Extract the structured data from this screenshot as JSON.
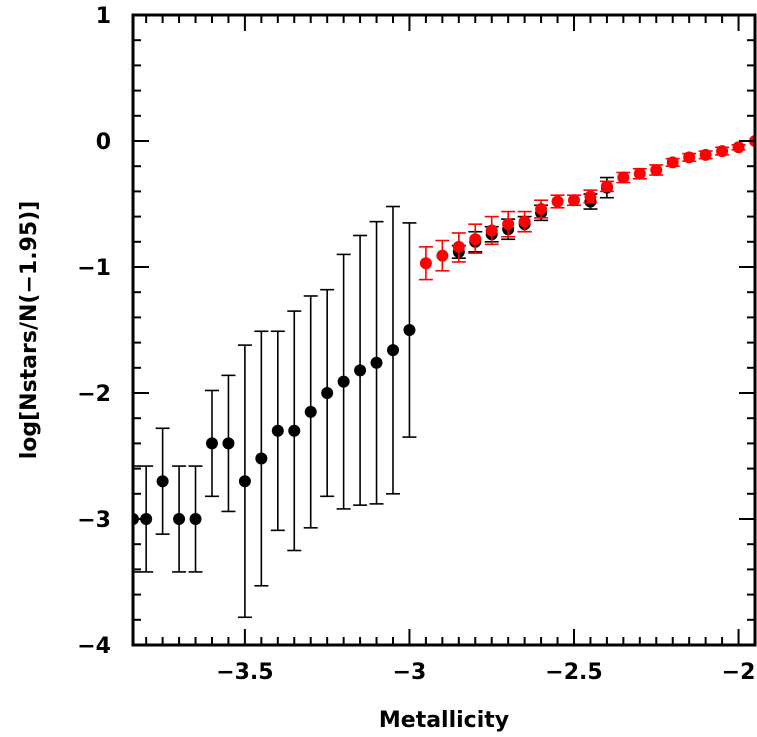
{
  "chart_data": {
    "type": "scatter",
    "title": "",
    "xlabel": "Metallicity",
    "ylabel": "log[Nstars/N(−1.95)]",
    "xlim": [
      -3.84,
      -1.95
    ],
    "ylim": [
      -4,
      1
    ],
    "grid": false,
    "x_ticks": [
      {
        "value": -3.5,
        "label": "−3.5"
      },
      {
        "value": -3,
        "label": "−3"
      },
      {
        "value": -2.5,
        "label": "−2.5"
      },
      {
        "value": -2,
        "label": "−2"
      }
    ],
    "y_ticks": [
      {
        "value": 1,
        "label": "1"
      },
      {
        "value": 0,
        "label": "0"
      },
      {
        "value": -1,
        "label": "−1"
      },
      {
        "value": -2,
        "label": "−2"
      },
      {
        "value": -3,
        "label": "−3"
      },
      {
        "value": -4,
        "label": "−4"
      }
    ],
    "series": [
      {
        "color": "#000000",
        "points": [
          {
            "x": -3.84,
            "y": -3.0,
            "lo": -3.42,
            "hi": -2.58
          },
          {
            "x": -3.8,
            "y": -3.0,
            "lo": -3.42,
            "hi": -2.58
          },
          {
            "x": -3.75,
            "y": -2.7,
            "lo": -3.12,
            "hi": -2.28
          },
          {
            "x": -3.7,
            "y": -3.0,
            "lo": -3.42,
            "hi": -2.58
          },
          {
            "x": -3.65,
            "y": -3.0,
            "lo": -3.42,
            "hi": -2.58
          },
          {
            "x": -3.6,
            "y": -2.4,
            "lo": -2.82,
            "hi": -1.98
          },
          {
            "x": -3.55,
            "y": -2.4,
            "lo": -2.94,
            "hi": -1.86
          },
          {
            "x": -3.5,
            "y": -2.7,
            "lo": -3.78,
            "hi": -1.62
          },
          {
            "x": -3.45,
            "y": -2.52,
            "lo": -3.53,
            "hi": -1.51
          },
          {
            "x": -3.4,
            "y": -2.3,
            "lo": -3.09,
            "hi": -1.51
          },
          {
            "x": -3.35,
            "y": -2.3,
            "lo": -3.25,
            "hi": -1.35
          },
          {
            "x": -3.3,
            "y": -2.15,
            "lo": -3.07,
            "hi": -1.23
          },
          {
            "x": -3.25,
            "y": -2.0,
            "lo": -2.82,
            "hi": -1.18
          },
          {
            "x": -3.2,
            "y": -1.91,
            "lo": -2.92,
            "hi": -0.9
          },
          {
            "x": -3.15,
            "y": -1.82,
            "lo": -2.89,
            "hi": -0.75
          },
          {
            "x": -3.1,
            "y": -1.76,
            "lo": -2.88,
            "hi": -0.64
          },
          {
            "x": -3.05,
            "y": -1.66,
            "lo": -2.8,
            "hi": -0.52
          },
          {
            "x": -3.0,
            "y": -1.5,
            "lo": -2.35,
            "hi": -0.65
          },
          {
            "x": -2.85,
            "y": -0.88,
            "lo": -0.93,
            "hi": -0.83
          },
          {
            "x": -2.8,
            "y": -0.8,
            "lo": -0.88,
            "hi": -0.72
          },
          {
            "x": -2.75,
            "y": -0.74,
            "lo": -0.8,
            "hi": -0.68
          },
          {
            "x": -2.7,
            "y": -0.7,
            "lo": -0.78,
            "hi": -0.62
          },
          {
            "x": -2.65,
            "y": -0.66,
            "lo": -0.72,
            "hi": -0.6
          },
          {
            "x": -2.6,
            "y": -0.57,
            "lo": -0.63,
            "hi": -0.51
          },
          {
            "x": -2.45,
            "y": -0.48,
            "lo": -0.54,
            "hi": -0.42
          },
          {
            "x": -2.4,
            "y": -0.37,
            "lo": -0.45,
            "hi": -0.29
          }
        ]
      },
      {
        "color": "#ff0000",
        "points": [
          {
            "x": -2.95,
            "y": -0.97,
            "lo": -1.1,
            "hi": -0.84
          },
          {
            "x": -2.9,
            "y": -0.91,
            "lo": -1.03,
            "hi": -0.79
          },
          {
            "x": -2.85,
            "y": -0.84,
            "lo": -0.96,
            "hi": -0.73
          },
          {
            "x": -2.8,
            "y": -0.78,
            "lo": -0.89,
            "hi": -0.66
          },
          {
            "x": -2.75,
            "y": -0.71,
            "lo": -0.82,
            "hi": -0.6
          },
          {
            "x": -2.7,
            "y": -0.66,
            "lo": -0.76,
            "hi": -0.56
          },
          {
            "x": -2.65,
            "y": -0.64,
            "lo": -0.72,
            "hi": -0.56
          },
          {
            "x": -2.6,
            "y": -0.54,
            "lo": -0.61,
            "hi": -0.47
          },
          {
            "x": -2.55,
            "y": -0.48,
            "lo": -0.53,
            "hi": -0.43
          },
          {
            "x": -2.5,
            "y": -0.47,
            "lo": -0.51,
            "hi": -0.43
          },
          {
            "x": -2.45,
            "y": -0.44,
            "lo": -0.49,
            "hi": -0.39
          },
          {
            "x": -2.4,
            "y": -0.36,
            "lo": -0.4,
            "hi": -0.32
          },
          {
            "x": -2.35,
            "y": -0.29,
            "lo": -0.33,
            "hi": -0.25
          },
          {
            "x": -2.3,
            "y": -0.26,
            "lo": -0.3,
            "hi": -0.22
          },
          {
            "x": -2.25,
            "y": -0.23,
            "lo": -0.27,
            "hi": -0.19
          },
          {
            "x": -2.2,
            "y": -0.17,
            "lo": -0.2,
            "hi": -0.14
          },
          {
            "x": -2.15,
            "y": -0.13,
            "lo": -0.16,
            "hi": -0.1
          },
          {
            "x": -2.1,
            "y": -0.11,
            "lo": -0.14,
            "hi": -0.08
          },
          {
            "x": -2.05,
            "y": -0.08,
            "lo": -0.11,
            "hi": -0.05
          },
          {
            "x": -2.0,
            "y": -0.05,
            "lo": -0.07,
            "hi": -0.03
          },
          {
            "x": -1.95,
            "y": 0.0,
            "lo": 0.0,
            "hi": 0.0
          }
        ]
      }
    ]
  }
}
